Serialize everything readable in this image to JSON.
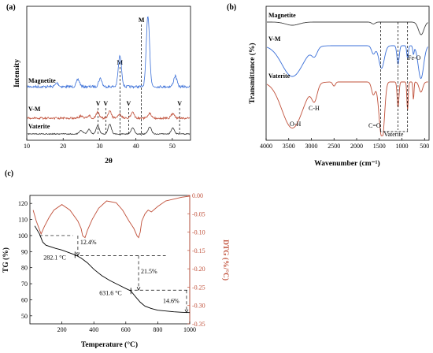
{
  "chart_data": [
    {
      "panel": "(a)",
      "type": "line",
      "xlabel": "2θ",
      "ylabel": "Intensity",
      "xlim": [
        10,
        55
      ],
      "x_ticks": [
        10,
        20,
        30,
        40,
        50
      ],
      "y_ticks": [],
      "grid": false,
      "series": [
        {
          "name": "Magnetite",
          "color": "#3a6fd8",
          "peaks": [
            {
              "x": 18.3,
              "h": 0.03
            },
            {
              "x": 24.1,
              "h": 0.06
            },
            {
              "x": 30.2,
              "h": 0.07
            },
            {
              "x": 35.6,
              "h": 0.26
            },
            {
              "x": 43.3,
              "h": 0.6
            },
            {
              "x": 50.8,
              "h": 0.09
            }
          ]
        },
        {
          "name": "V-M",
          "color": "#c0503a",
          "peaks": [
            {
              "x": 24.9,
              "h": 0.02
            },
            {
              "x": 27.1,
              "h": 0.02
            },
            {
              "x": 29.5,
              "h": 0.05
            },
            {
              "x": 32.8,
              "h": 0.06
            },
            {
              "x": 35.6,
              "h": 0.03
            },
            {
              "x": 39.1,
              "h": 0.05
            },
            {
              "x": 43.8,
              "h": 0.04
            },
            {
              "x": 50.1,
              "h": 0.04
            }
          ]
        },
        {
          "name": "Vaterite",
          "color": "#333333",
          "peaks": [
            {
              "x": 24.9,
              "h": 0.03
            },
            {
              "x": 27.1,
              "h": 0.04
            },
            {
              "x": 29.5,
              "h": 0.07
            },
            {
              "x": 32.8,
              "h": 0.08
            },
            {
              "x": 39.1,
              "h": 0.05
            },
            {
              "x": 43.8,
              "h": 0.06
            },
            {
              "x": 50.1,
              "h": 0.05
            }
          ]
        }
      ],
      "peak_markers": [
        {
          "label": "M",
          "x": 35.6
        },
        {
          "label": "M",
          "x": 41.5
        },
        {
          "label": "V",
          "x": 29.6
        },
        {
          "label": "V",
          "x": 31.7
        },
        {
          "label": "V",
          "x": 38.0
        },
        {
          "label": "V",
          "x": 52.0
        }
      ]
    },
    {
      "panel": "(b)",
      "type": "line",
      "xlabel": "Wavenumber (cm⁻¹)",
      "ylabel": "Transmittance (%)",
      "xlim": [
        4000,
        400
      ],
      "x_ticks": [
        4000,
        3500,
        3000,
        2500,
        2000,
        1500,
        1000,
        500
      ],
      "grid": false,
      "series": [
        {
          "name": "Magnetite",
          "color": "#444444",
          "bands": [
            {
              "x": 3420,
              "w": 150,
              "d": 0.25
            },
            {
              "x": 1630,
              "w": 40,
              "d": 0.15
            },
            {
              "x": 575,
              "w": 60,
              "d": 1.0
            }
          ]
        },
        {
          "name": "V-M",
          "color": "#3a6fd8",
          "bands": [
            {
              "x": 3420,
              "w": 230,
              "d": 0.75
            },
            {
              "x": 2930,
              "w": 60,
              "d": 0.2
            },
            {
              "x": 1630,
              "w": 40,
              "d": 0.2
            },
            {
              "x": 1450,
              "w": 60,
              "d": 0.55
            },
            {
              "x": 1085,
              "w": 25,
              "d": 0.45
            },
            {
              "x": 875,
              "w": 18,
              "d": 0.3
            },
            {
              "x": 745,
              "w": 15,
              "d": 0.2
            },
            {
              "x": 580,
              "w": 60,
              "d": 0.8
            }
          ]
        },
        {
          "name": "Vaterite",
          "color": "#c0503a",
          "bands": [
            {
              "x": 3420,
              "w": 230,
              "d": 0.9
            },
            {
              "x": 2930,
              "w": 60,
              "d": 0.3
            },
            {
              "x": 2500,
              "w": 30,
              "d": 0.08
            },
            {
              "x": 1630,
              "w": 40,
              "d": 0.25
            },
            {
              "x": 1470,
              "w": 50,
              "d": 0.8
            },
            {
              "x": 1410,
              "w": 40,
              "d": 0.6
            },
            {
              "x": 1085,
              "w": 20,
              "d": 0.5
            },
            {
              "x": 875,
              "w": 15,
              "d": 0.55
            },
            {
              "x": 745,
              "w": 12,
              "d": 0.35
            },
            {
              "x": 580,
              "w": 40,
              "d": 0.2
            }
          ]
        }
      ],
      "annotations": [
        "O-H",
        "C-H",
        "C=O",
        "Vaterite",
        "Fe-O"
      ]
    },
    {
      "panel": "(c)",
      "type": "line",
      "xlabel": "Temperature (°C)",
      "xlim": [
        0,
        1000
      ],
      "x_ticks": [
        200,
        400,
        600,
        800,
        1000
      ],
      "y_left": {
        "label": "TG (%)",
        "lim": [
          45,
          125
        ],
        "ticks": [
          50,
          60,
          70,
          80,
          90,
          100,
          110,
          120
        ]
      },
      "y_right": {
        "label": "DTG (%/°C)",
        "lim": [
          -0.35,
          0.0
        ],
        "ticks": [
          "0.00",
          "-0.05",
          "-0.10",
          "-0.15",
          "-0.20",
          "-0.25",
          "-0.30",
          "-0.35"
        ]
      },
      "series": [
        {
          "name": "TG",
          "color": "#000000",
          "axis": "left",
          "x": [
            30,
            60,
            80,
            100,
            130,
            160,
            200,
            240,
            282.1,
            320,
            360,
            400,
            450,
            500,
            550,
            600,
            631.6,
            660,
            690,
            720,
            760,
            800,
            850,
            900,
            950,
            1000
          ],
          "y": [
            106,
            101,
            96,
            94,
            93,
            92,
            91,
            89.5,
            88,
            86,
            83,
            79,
            75,
            72,
            69.5,
            67,
            65.5,
            62,
            58.5,
            56,
            54.5,
            53.5,
            53,
            52.5,
            52.2,
            52
          ]
        },
        {
          "name": "DTG",
          "color": "#c0503a",
          "axis": "right",
          "x": [
            20,
            40,
            70,
            90,
            120,
            150,
            200,
            250,
            300,
            320,
            330,
            345,
            360,
            390,
            430,
            480,
            540,
            580,
            620,
            650,
            670,
            680,
            690,
            700,
            720,
            740,
            760,
            800,
            850,
            900,
            950,
            1000
          ],
          "y": [
            -0.04,
            -0.07,
            -0.105,
            -0.085,
            -0.06,
            -0.04,
            -0.025,
            -0.04,
            -0.07,
            -0.09,
            -0.11,
            -0.115,
            -0.095,
            -0.065,
            -0.035,
            -0.015,
            -0.02,
            -0.04,
            -0.07,
            -0.09,
            -0.11,
            -0.115,
            -0.1,
            -0.07,
            -0.05,
            -0.04,
            -0.045,
            -0.03,
            -0.015,
            -0.01,
            -0.005,
            -0.002
          ]
        }
      ],
      "annotations": [
        {
          "text": "12.4%",
          "x": 300,
          "y": 94.5
        },
        {
          "text": "282.1 °C",
          "x": 282.1,
          "y": 88
        },
        {
          "text": "21.5%",
          "x": 680,
          "y": 76.5
        },
        {
          "text": "631.6 °C",
          "x": 631.6,
          "y": 65.5
        },
        {
          "text": "14.6%",
          "x": 980,
          "y": 59
        }
      ]
    }
  ]
}
